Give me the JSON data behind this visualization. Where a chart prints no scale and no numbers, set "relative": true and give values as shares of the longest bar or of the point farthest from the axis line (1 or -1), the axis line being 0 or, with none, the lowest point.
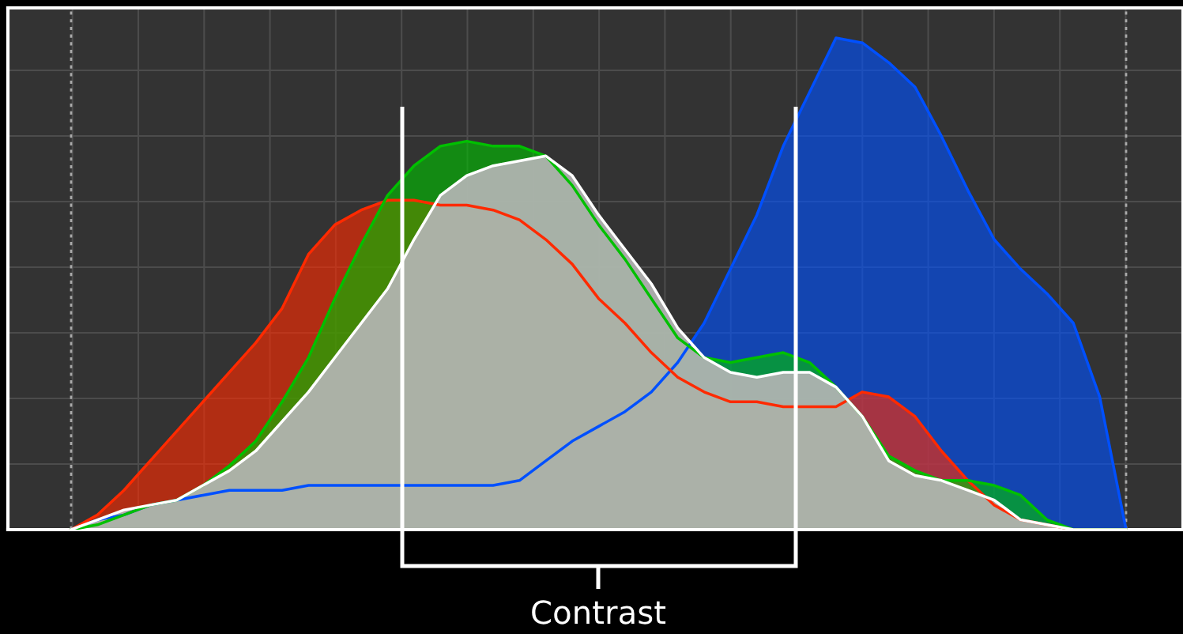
{
  "chart_data": {
    "type": "area",
    "relative": true,
    "grid": true,
    "tick_labels": false,
    "legend": false,
    "categories": [
      null,
      null,
      null,
      null,
      null,
      null,
      null,
      null,
      null,
      null,
      null,
      null,
      null,
      null,
      null,
      null,
      null,
      null,
      null,
      null,
      null,
      null,
      null,
      null,
      null,
      null,
      null,
      null,
      null,
      null,
      null,
      null,
      null,
      null,
      null,
      null,
      null,
      null,
      null,
      null,
      null
    ],
    "series": [
      {
        "color": "#0050ff",
        "values": [
          0,
          0.02,
          0.03,
          0.05,
          0.06,
          0.07,
          0.08,
          0.08,
          0.08,
          0.09,
          0.09,
          0.09,
          0.09,
          0.09,
          0.09,
          0.09,
          0.09,
          0.1,
          0.14,
          0.18,
          0.21,
          0.24,
          0.28,
          0.34,
          0.42,
          0.53,
          0.64,
          0.78,
          0.89,
          1.0,
          0.99,
          0.95,
          0.9,
          0.8,
          0.69,
          0.59,
          0.53,
          0.48,
          0.42,
          0.27,
          0
        ]
      },
      {
        "color": "#ff2a00",
        "values": [
          0,
          0.03,
          0.08,
          0.14,
          0.2,
          0.26,
          0.32,
          0.38,
          0.45,
          0.56,
          0.62,
          0.65,
          0.67,
          0.67,
          0.66,
          0.66,
          0.65,
          0.63,
          0.59,
          0.54,
          0.47,
          0.42,
          0.36,
          0.31,
          0.28,
          0.26,
          0.26,
          0.25,
          0.25,
          0.25,
          0.28,
          0.27,
          0.23,
          0.16,
          0.1,
          0.05,
          0.02,
          0.01,
          0,
          0,
          0
        ]
      },
      {
        "color": "#00c000",
        "values": [
          0,
          0.01,
          0.03,
          0.05,
          0.06,
          0.09,
          0.13,
          0.18,
          0.26,
          0.35,
          0.47,
          0.58,
          0.68,
          0.74,
          0.78,
          0.79,
          0.78,
          0.78,
          0.76,
          0.7,
          0.62,
          0.55,
          0.47,
          0.39,
          0.35,
          0.34,
          0.35,
          0.36,
          0.34,
          0.29,
          0.23,
          0.15,
          0.12,
          0.1,
          0.1,
          0.09,
          0.07,
          0.02,
          0,
          0,
          0
        ]
      },
      {
        "color": "#ffffff",
        "values": [
          0,
          0.02,
          0.04,
          0.05,
          0.06,
          0.09,
          0.12,
          0.16,
          0.22,
          0.28,
          0.35,
          0.42,
          0.49,
          0.59,
          0.68,
          0.72,
          0.74,
          0.75,
          0.76,
          0.72,
          0.64,
          0.57,
          0.5,
          0.41,
          0.35,
          0.32,
          0.31,
          0.32,
          0.32,
          0.29,
          0.23,
          0.14,
          0.11,
          0.1,
          0.08,
          0.06,
          0.02,
          0.01,
          0,
          0,
          0
        ]
      }
    ],
    "annotations": [
      "Contrast"
    ]
  }
}
